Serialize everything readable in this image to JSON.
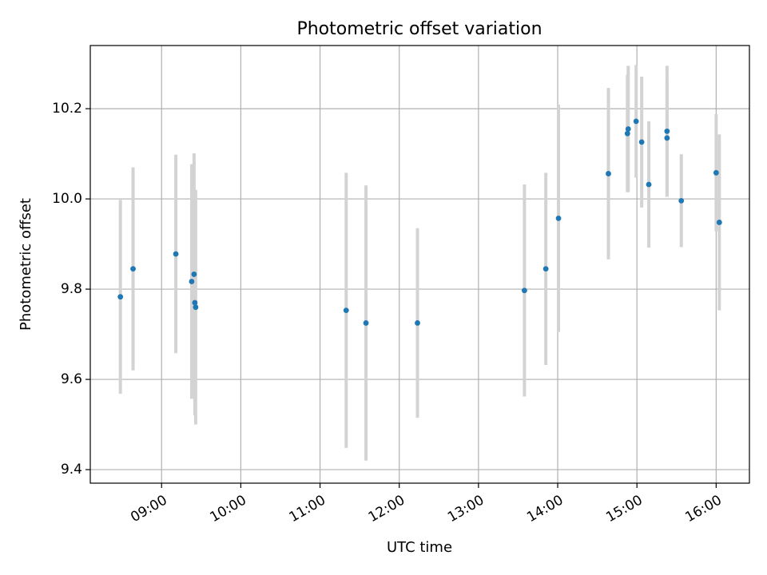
{
  "chart_data": {
    "type": "scatter",
    "title": "Photometric offset variation",
    "xlabel": "UTC time",
    "ylabel": "Photometric offset",
    "xlim_hours": [
      8.1,
      16.42
    ],
    "ylim": [
      9.37,
      10.34
    ],
    "grid": true,
    "x_ticks": [
      {
        "value": 9,
        "label": "09:00"
      },
      {
        "value": 10,
        "label": "10:00"
      },
      {
        "value": 11,
        "label": "11:00"
      },
      {
        "value": 12,
        "label": "12:00"
      },
      {
        "value": 13,
        "label": "13:00"
      },
      {
        "value": 14,
        "label": "14:00"
      },
      {
        "value": 15,
        "label": "15:00"
      },
      {
        "value": 16,
        "label": "16:00"
      }
    ],
    "y_ticks": [
      {
        "value": 9.4,
        "label": "9.4"
      },
      {
        "value": 9.6,
        "label": "9.6"
      },
      {
        "value": 9.8,
        "label": "9.8"
      },
      {
        "value": 10.0,
        "label": "10.0"
      },
      {
        "value": 10.2,
        "label": "10.2"
      }
    ],
    "colors": {
      "point": "#1f77b4",
      "errorbar": "#d3d3d3",
      "grid": "#b0b0b0"
    },
    "points": [
      {
        "t": 8.48,
        "y": 9.783,
        "err": 0.215
      },
      {
        "t": 8.64,
        "y": 9.845,
        "err": 0.225
      },
      {
        "t": 9.18,
        "y": 9.878,
        "err": 0.22
      },
      {
        "t": 9.38,
        "y": 9.817,
        "err": 0.26
      },
      {
        "t": 9.41,
        "y": 9.833,
        "err": 0.268
      },
      {
        "t": 9.42,
        "y": 9.77,
        "err": 0.25
      },
      {
        "t": 9.43,
        "y": 9.76,
        "err": 0.26
      },
      {
        "t": 11.33,
        "y": 9.753,
        "err": 0.305
      },
      {
        "t": 11.58,
        "y": 9.725,
        "err": 0.305
      },
      {
        "t": 12.23,
        "y": 9.725,
        "err": 0.21
      },
      {
        "t": 13.58,
        "y": 9.797,
        "err": 0.235
      },
      {
        "t": 13.85,
        "y": 9.845,
        "err": 0.213
      },
      {
        "t": 14.01,
        "y": 9.957,
        "err": 0.252
      },
      {
        "t": 14.64,
        "y": 10.056,
        "err": 0.19
      },
      {
        "t": 14.88,
        "y": 10.145,
        "err": 0.13
      },
      {
        "t": 14.89,
        "y": 10.155,
        "err": 0.14
      },
      {
        "t": 14.99,
        "y": 10.172,
        "err": 0.125
      },
      {
        "t": 15.06,
        "y": 10.126,
        "err": 0.145
      },
      {
        "t": 15.15,
        "y": 10.032,
        "err": 0.14
      },
      {
        "t": 15.38,
        "y": 10.135,
        "err": 0.13
      },
      {
        "t": 15.38,
        "y": 10.15,
        "err": 0.145
      },
      {
        "t": 15.56,
        "y": 9.996,
        "err": 0.103
      },
      {
        "t": 16.0,
        "y": 10.058,
        "err": 0.13
      },
      {
        "t": 16.04,
        "y": 9.948,
        "err": 0.195
      }
    ]
  }
}
